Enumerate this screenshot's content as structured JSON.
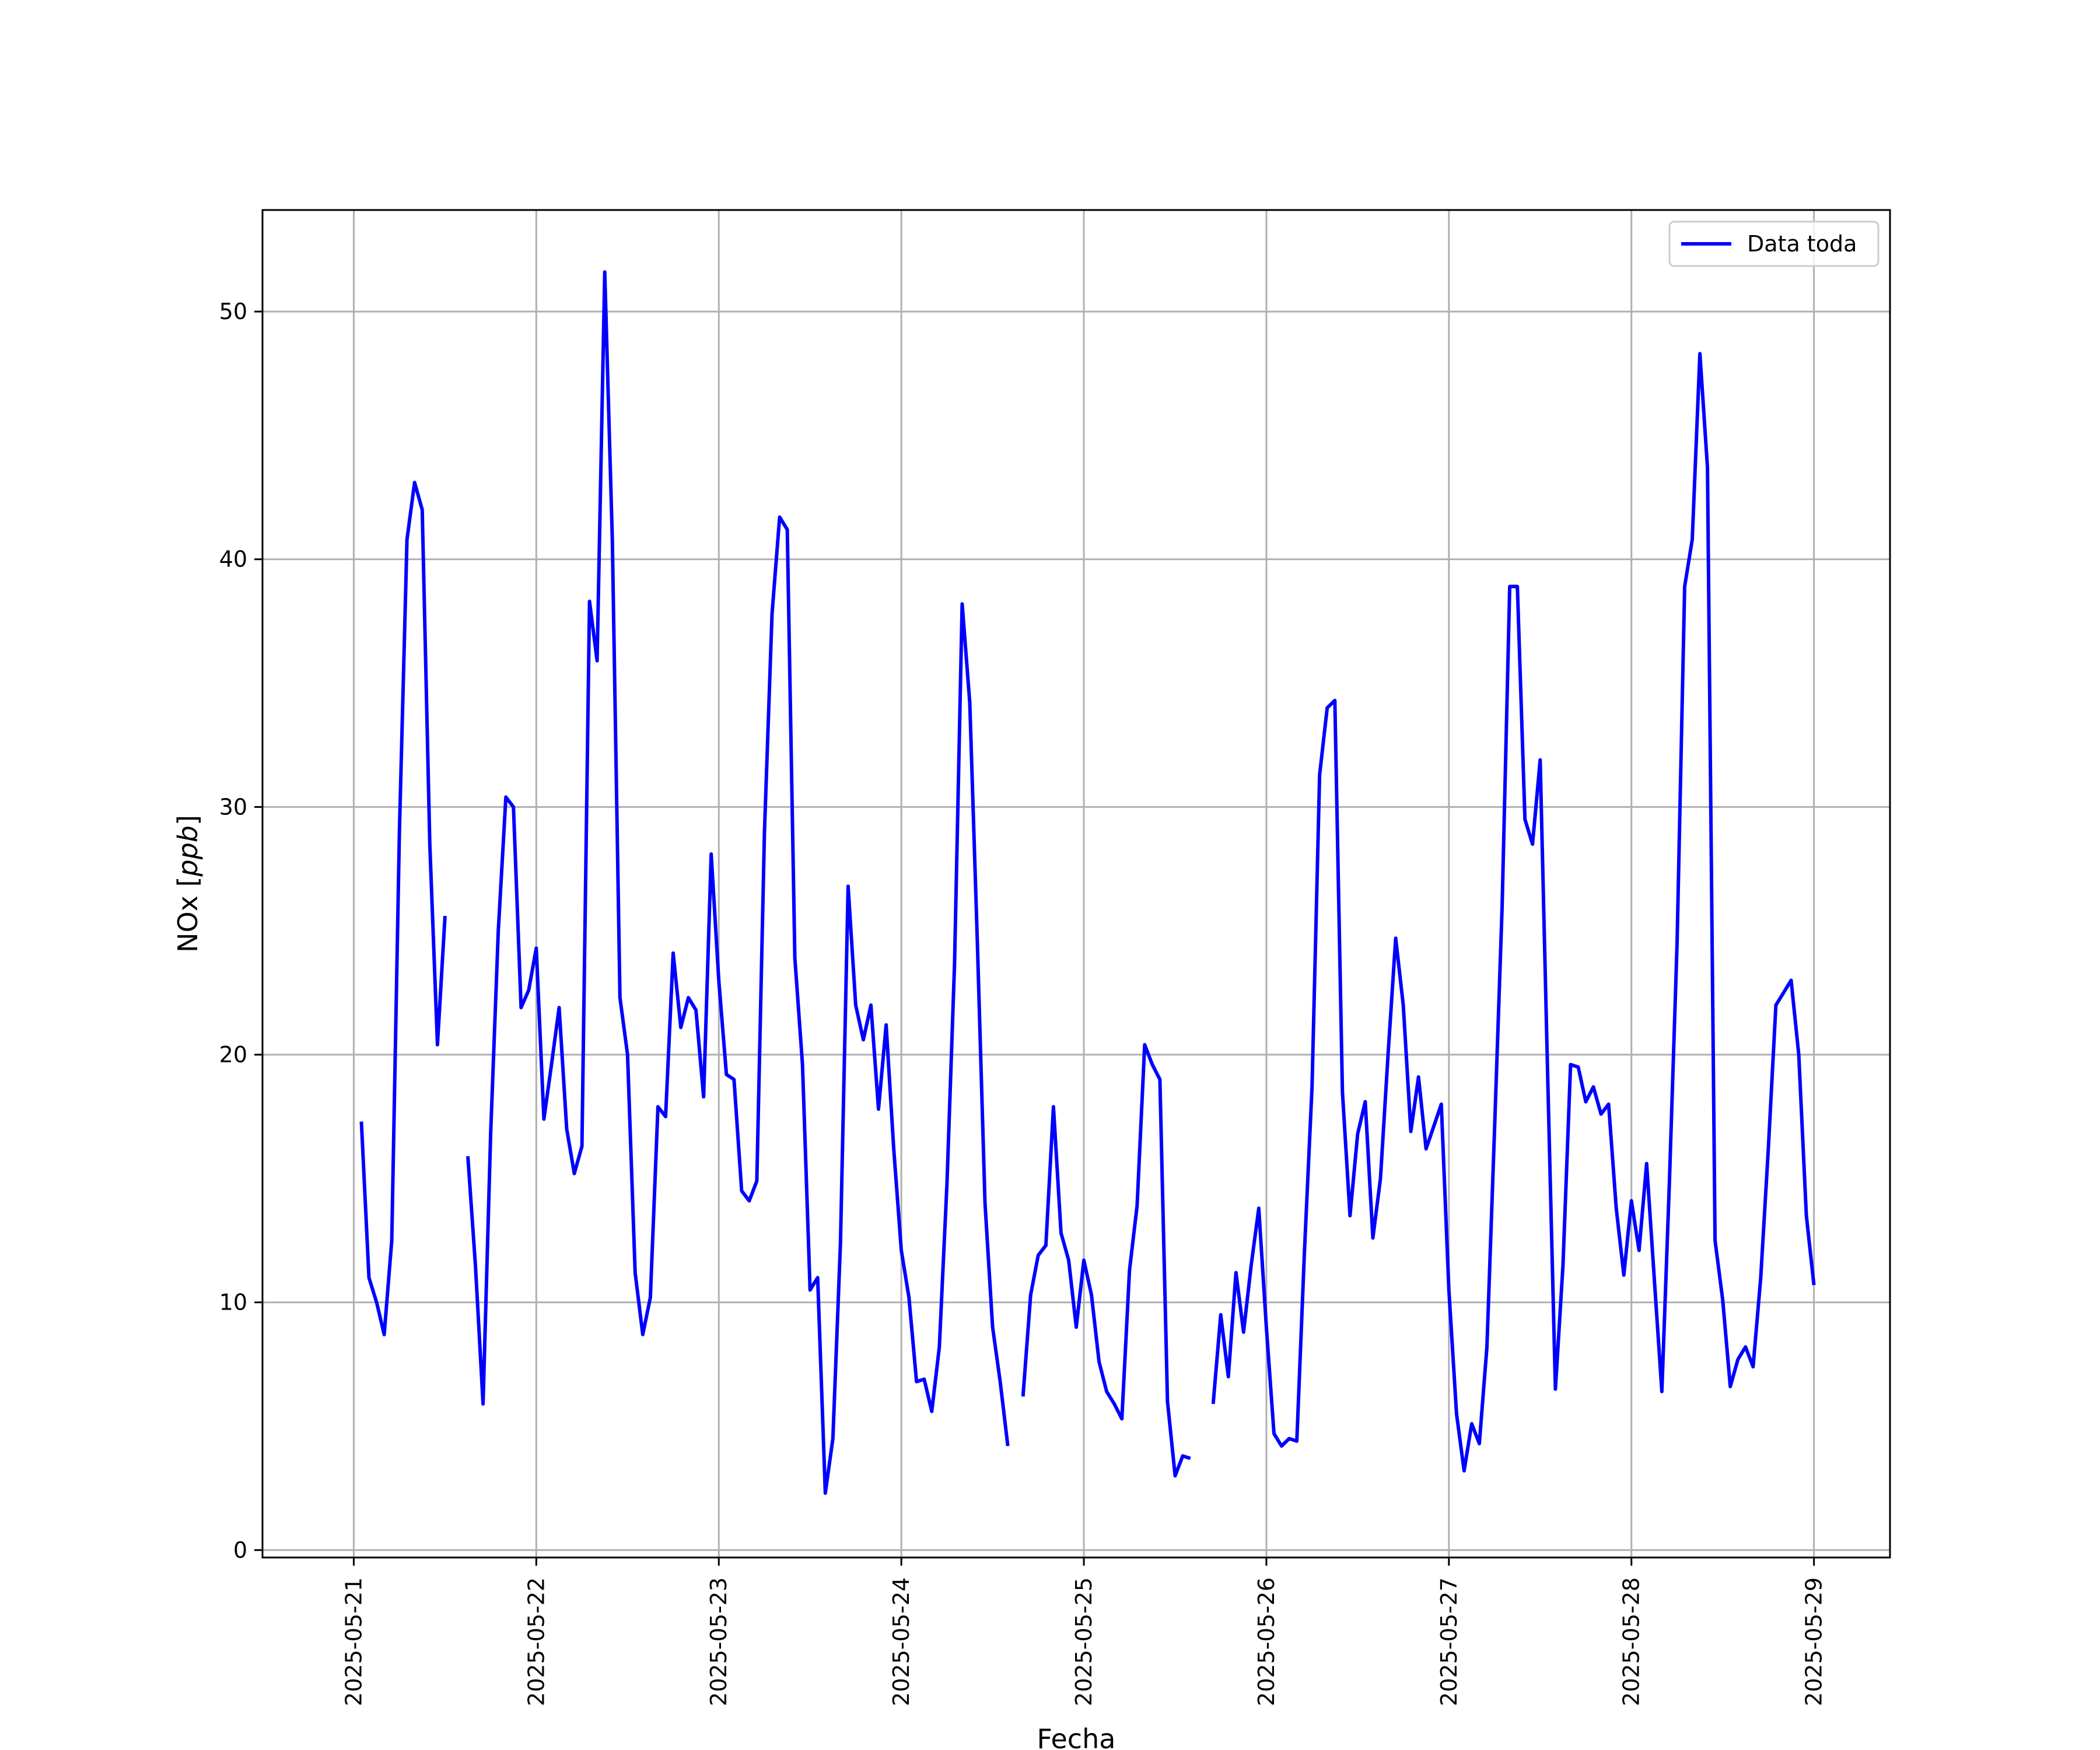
{
  "chart_data": {
    "type": "line",
    "xlabel": "Fecha",
    "ylabel_text": "NOx [",
    "ylabel_unit": "ppb",
    "ylabel_close": "]",
    "grid": true,
    "legend_position": "top-right",
    "x_tick_labels": [
      "2025-05-21",
      "2025-05-22",
      "2025-05-23",
      "2025-05-24",
      "2025-05-25",
      "2025-05-26",
      "2025-05-27",
      "2025-05-28",
      "2025-05-29"
    ],
    "x_range": [
      "2025-05-20 12:00",
      "2025-05-29 10:00"
    ],
    "y_ticks": [
      0,
      10,
      20,
      30,
      40,
      50
    ],
    "ylim": [
      -0.3,
      54.1
    ],
    "series": [
      {
        "name": "Data toda",
        "color": "#0000ff",
        "segments": [
          [
            [
              "2025-05-21 01:00",
              17.3
            ],
            [
              "2025-05-21 02:00",
              11.0
            ],
            [
              "2025-05-21 03:00",
              10.0
            ],
            [
              "2025-05-21 04:00",
              8.7
            ],
            [
              "2025-05-21 05:00",
              12.5
            ],
            [
              "2025-05-21 06:00",
              29.0
            ],
            [
              "2025-05-21 07:00",
              40.8
            ],
            [
              "2025-05-21 08:00",
              43.1
            ],
            [
              "2025-05-21 09:00",
              42.0
            ],
            [
              "2025-05-21 10:00",
              28.5
            ],
            [
              "2025-05-21 11:00",
              20.4
            ],
            [
              "2025-05-21 12:00",
              25.6
            ]
          ],
          [
            [
              "2025-05-21 15:00",
              15.9
            ],
            [
              "2025-05-21 16:00",
              11.5
            ],
            [
              "2025-05-21 17:00",
              5.9
            ],
            [
              "2025-05-21 18:00",
              16.8
            ],
            [
              "2025-05-21 19:00",
              25.0
            ],
            [
              "2025-05-21 20:00",
              30.4
            ],
            [
              "2025-05-21 21:00",
              30.0
            ],
            [
              "2025-05-21 22:00",
              21.9
            ],
            [
              "2025-05-21 23:00",
              22.6
            ],
            [
              "2025-05-22 00:00",
              24.3
            ],
            [
              "2025-05-22 01:00",
              17.4
            ],
            [
              "2025-05-22 02:00",
              19.6
            ],
            [
              "2025-05-22 03:00",
              21.9
            ],
            [
              "2025-05-22 04:00",
              17.0
            ],
            [
              "2025-05-22 05:00",
              15.2
            ],
            [
              "2025-05-22 06:00",
              16.3
            ],
            [
              "2025-05-22 07:00",
              38.3
            ],
            [
              "2025-05-22 08:00",
              35.9
            ],
            [
              "2025-05-22 09:00",
              51.6
            ],
            [
              "2025-05-22 10:00",
              40.8
            ],
            [
              "2025-05-22 11:00",
              22.3
            ],
            [
              "2025-05-22 12:00",
              20.0
            ],
            [
              "2025-05-22 13:00",
              11.2
            ],
            [
              "2025-05-22 14:00",
              8.7
            ],
            [
              "2025-05-22 15:00",
              10.2
            ],
            [
              "2025-05-22 16:00",
              17.9
            ],
            [
              "2025-05-22 17:00",
              17.5
            ],
            [
              "2025-05-22 18:00",
              24.1
            ],
            [
              "2025-05-22 19:00",
              21.1
            ],
            [
              "2025-05-22 20:00",
              22.3
            ],
            [
              "2025-05-22 21:00",
              21.8
            ],
            [
              "2025-05-22 22:00",
              18.3
            ],
            [
              "2025-05-22 23:00",
              28.1
            ],
            [
              "2025-05-23 00:00",
              23.0
            ],
            [
              "2025-05-23 01:00",
              19.2
            ],
            [
              "2025-05-23 02:00",
              19.0
            ],
            [
              "2025-05-23 03:00",
              14.5
            ],
            [
              "2025-05-23 04:00",
              14.1
            ],
            [
              "2025-05-23 05:00",
              14.9
            ],
            [
              "2025-05-23 06:00",
              29.0
            ],
            [
              "2025-05-23 07:00",
              37.8
            ],
            [
              "2025-05-23 08:00",
              41.7
            ],
            [
              "2025-05-23 09:00",
              41.2
            ],
            [
              "2025-05-23 10:00",
              23.9
            ],
            [
              "2025-05-23 11:00",
              19.6
            ],
            [
              "2025-05-23 12:00",
              10.5
            ],
            [
              "2025-05-23 13:00",
              11.0
            ],
            [
              "2025-05-23 14:00",
              2.3
            ],
            [
              "2025-05-23 15:00",
              4.5
            ],
            [
              "2025-05-23 16:00",
              12.4
            ],
            [
              "2025-05-23 17:00",
              26.8
            ],
            [
              "2025-05-23 18:00",
              22.0
            ],
            [
              "2025-05-23 19:00",
              20.6
            ],
            [
              "2025-05-23 20:00",
              22.0
            ],
            [
              "2025-05-23 21:00",
              17.8
            ],
            [
              "2025-05-23 22:00",
              21.2
            ],
            [
              "2025-05-23 23:00",
              16.2
            ],
            [
              "2025-05-24 00:00",
              12.1
            ],
            [
              "2025-05-24 01:00",
              10.2
            ],
            [
              "2025-05-24 02:00",
              6.8
            ],
            [
              "2025-05-24 03:00",
              6.9
            ],
            [
              "2025-05-24 04:00",
              5.6
            ],
            [
              "2025-05-24 05:00",
              8.2
            ],
            [
              "2025-05-24 06:00",
              14.8
            ],
            [
              "2025-05-24 07:00",
              23.7
            ],
            [
              "2025-05-24 08:00",
              38.2
            ],
            [
              "2025-05-24 09:00",
              34.2
            ],
            [
              "2025-05-24 10:00",
              24.5
            ],
            [
              "2025-05-24 11:00",
              14.0
            ],
            [
              "2025-05-24 12:00",
              9.0
            ],
            [
              "2025-05-24 13:00",
              6.8
            ],
            [
              "2025-05-24 14:00",
              4.2
            ]
          ],
          [
            [
              "2025-05-24 16:00",
              6.2
            ],
            [
              "2025-05-24 17:00",
              10.3
            ],
            [
              "2025-05-24 18:00",
              11.9
            ],
            [
              "2025-05-24 19:00",
              12.3
            ],
            [
              "2025-05-24 20:00",
              17.9
            ],
            [
              "2025-05-24 21:00",
              12.8
            ],
            [
              "2025-05-24 22:00",
              11.7
            ],
            [
              "2025-05-24 23:00",
              9.0
            ],
            [
              "2025-05-25 00:00",
              11.7
            ],
            [
              "2025-05-25 01:00",
              10.3
            ],
            [
              "2025-05-25 02:00",
              7.6
            ],
            [
              "2025-05-25 03:00",
              6.4
            ],
            [
              "2025-05-25 04:00",
              5.9
            ],
            [
              "2025-05-25 05:00",
              5.3
            ],
            [
              "2025-05-25 06:00",
              11.3
            ],
            [
              "2025-05-25 07:00",
              13.9
            ],
            [
              "2025-05-25 08:00",
              20.4
            ],
            [
              "2025-05-25 09:00",
              19.6
            ],
            [
              "2025-05-25 10:00",
              19.0
            ],
            [
              "2025-05-25 11:00",
              6.0
            ],
            [
              "2025-05-25 12:00",
              3.0
            ],
            [
              "2025-05-25 13:00",
              3.8
            ],
            [
              "2025-05-25 14:00",
              3.7
            ]
          ],
          [
            [
              "2025-05-25 17:00",
              5.9
            ],
            [
              "2025-05-25 18:00",
              9.5
            ],
            [
              "2025-05-25 19:00",
              7.0
            ],
            [
              "2025-05-25 20:00",
              11.2
            ],
            [
              "2025-05-25 21:00",
              8.8
            ],
            [
              "2025-05-25 22:00",
              11.5
            ],
            [
              "2025-05-25 23:00",
              13.8
            ],
            [
              "2025-05-26 00:00",
              9.0
            ],
            [
              "2025-05-26 01:00",
              4.7
            ],
            [
              "2025-05-26 02:00",
              4.2
            ],
            [
              "2025-05-26 03:00",
              4.5
            ],
            [
              "2025-05-26 04:00",
              4.4
            ],
            [
              "2025-05-26 05:00",
              12.0
            ],
            [
              "2025-05-26 06:00",
              18.7
            ],
            [
              "2025-05-26 07:00",
              31.3
            ],
            [
              "2025-05-26 08:00",
              34.0
            ],
            [
              "2025-05-26 09:00",
              34.3
            ],
            [
              "2025-05-26 10:00",
              18.5
            ],
            [
              "2025-05-26 11:00",
              13.5
            ],
            [
              "2025-05-26 12:00",
              16.8
            ],
            [
              "2025-05-26 13:00",
              18.1
            ],
            [
              "2025-05-26 14:00",
              12.6
            ],
            [
              "2025-05-26 15:00",
              15.0
            ],
            [
              "2025-05-26 16:00",
              20.0
            ],
            [
              "2025-05-26 17:00",
              24.7
            ],
            [
              "2025-05-26 18:00",
              22.0
            ],
            [
              "2025-05-26 19:00",
              16.9
            ],
            [
              "2025-05-26 20:00",
              19.1
            ],
            [
              "2025-05-26 21:00",
              16.2
            ],
            [
              "2025-05-26 22:00",
              17.1
            ],
            [
              "2025-05-26 23:00",
              18.0
            ],
            [
              "2025-05-27 00:00",
              10.5
            ],
            [
              "2025-05-27 01:00",
              5.5
            ],
            [
              "2025-05-27 02:00",
              3.2
            ],
            [
              "2025-05-27 03:00",
              5.1
            ],
            [
              "2025-05-27 04:00",
              4.3
            ],
            [
              "2025-05-27 05:00",
              8.2
            ],
            [
              "2025-05-27 06:00",
              17.0
            ],
            [
              "2025-05-27 07:00",
              26.0
            ],
            [
              "2025-05-27 08:00",
              38.9
            ],
            [
              "2025-05-27 09:00",
              38.9
            ],
            [
              "2025-05-27 10:00",
              29.5
            ],
            [
              "2025-05-27 11:00",
              28.5
            ],
            [
              "2025-05-27 12:00",
              31.9
            ],
            [
              "2025-05-27 13:00",
              19.0
            ],
            [
              "2025-05-27 14:00",
              6.5
            ],
            [
              "2025-05-27 15:00",
              11.5
            ],
            [
              "2025-05-27 16:00",
              19.6
            ],
            [
              "2025-05-27 17:00",
              19.5
            ],
            [
              "2025-05-27 18:00",
              18.1
            ],
            [
              "2025-05-27 19:00",
              18.7
            ],
            [
              "2025-05-27 20:00",
              17.6
            ],
            [
              "2025-05-27 21:00",
              18.0
            ],
            [
              "2025-05-27 22:00",
              13.8
            ],
            [
              "2025-05-27 23:00",
              11.1
            ],
            [
              "2025-05-28 00:00",
              14.1
            ],
            [
              "2025-05-28 01:00",
              12.1
            ],
            [
              "2025-05-28 02:00",
              15.6
            ],
            [
              "2025-05-28 03:00",
              11.0
            ],
            [
              "2025-05-28 04:00",
              6.4
            ],
            [
              "2025-05-28 05:00",
              14.9
            ],
            [
              "2025-05-28 06:00",
              24.5
            ],
            [
              "2025-05-28 07:00",
              38.9
            ],
            [
              "2025-05-28 08:00",
              40.8
            ],
            [
              "2025-05-28 09:00",
              48.3
            ],
            [
              "2025-05-28 10:00",
              43.7
            ],
            [
              "2025-05-28 11:00",
              12.5
            ],
            [
              "2025-05-28 12:00",
              10.1
            ],
            [
              "2025-05-28 13:00",
              6.6
            ],
            [
              "2025-05-28 14:00",
              7.7
            ],
            [
              "2025-05-28 15:00",
              8.2
            ],
            [
              "2025-05-28 16:00",
              7.4
            ],
            [
              "2025-05-28 17:00",
              11.0
            ],
            [
              "2025-05-28 18:00",
              16.2
            ],
            [
              "2025-05-28 19:00",
              22.0
            ],
            [
              "2025-05-28 20:00",
              22.5
            ],
            [
              "2025-05-28 21:00",
              23.0
            ],
            [
              "2025-05-28 22:00",
              20.0
            ],
            [
              "2025-05-28 23:00",
              13.5
            ],
            [
              "2025-05-29 00:00",
              10.7
            ]
          ]
        ]
      }
    ]
  }
}
